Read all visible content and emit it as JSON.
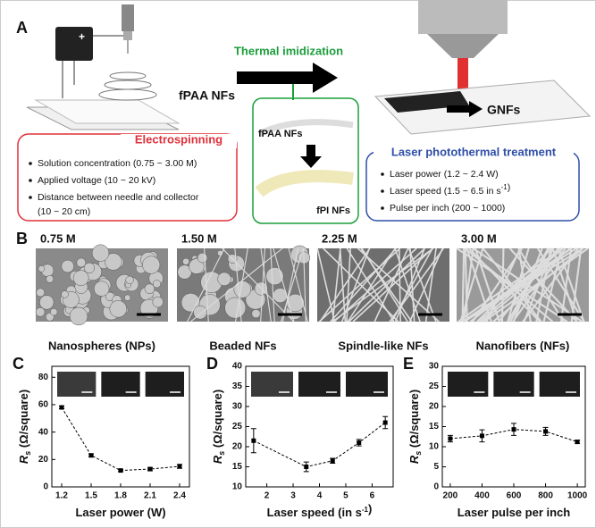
{
  "panel_a": {
    "letter": "A",
    "arrow_label": "Thermal imidization",
    "left_material": "fPAA NFs",
    "right_material": "GNFs",
    "electrospinning": {
      "title": "Electrospinning",
      "items": [
        [
          "Solution concentration (0.75 ~ 3.00 M)"
        ],
        [
          "Applied voltage (10 ~ 20 kV)"
        ],
        [
          "Distance between needle and collector",
          "(10 ~ 20 cm)"
        ]
      ]
    },
    "imidization_box": {
      "top": "fPAA NFs",
      "bottom": "fPI NFs"
    },
    "laser": {
      "title": "Laser photothermal treatment",
      "items": [
        [
          "Laser power (1.2 ~ 2.4 W)"
        ],
        [
          "Laser speed (1.5 ~ 6.5 in s",
          {
            "sup": "-1"
          },
          ")"
        ],
        [
          "Pulse per inch (200 ~ 1000)"
        ]
      ]
    }
  },
  "panel_b": {
    "letter": "B",
    "images": [
      {
        "concentration": "0.75 M",
        "caption": "Nanospheres (NPs)"
      },
      {
        "concentration": "1.50 M",
        "caption": "Beaded NFs"
      },
      {
        "concentration": "2.25 M",
        "caption": "Spindle-like NFs"
      },
      {
        "concentration": "3.00 M",
        "caption": "Nanofibers (NFs)"
      }
    ]
  },
  "chart_data": [
    {
      "type": "line",
      "panel": "C",
      "x_label": [
        "Laser power (W)"
      ],
      "y_label": {
        "symbol": "R",
        "subscript": "s",
        "unit": " (Ω/square)"
      },
      "x": [
        1.2,
        1.5,
        1.8,
        2.1,
        2.4
      ],
      "values": [
        58,
        23,
        12,
        13,
        15
      ],
      "errors": [
        1,
        1,
        0.8,
        1.2,
        1.5
      ],
      "xlim": [
        1.1,
        2.5
      ],
      "ylim": [
        0,
        88
      ],
      "xticks": [
        1.2,
        1.5,
        1.8,
        2.1,
        2.4
      ],
      "yticks": [
        0,
        20,
        40,
        60,
        80
      ],
      "color": "#000000"
    },
    {
      "type": "line",
      "panel": "D",
      "x_label": [
        "Laser speed (in s",
        {
          "sup": "-1"
        },
        ")"
      ],
      "y_label": {
        "symbol": "R",
        "subscript": "s",
        "unit": " (Ω/square)"
      },
      "x": [
        1.5,
        3.5,
        4.5,
        5.5,
        6.5
      ],
      "values": [
        21.5,
        15,
        16.5,
        21,
        26
      ],
      "errors": [
        3,
        1.2,
        0.6,
        0.8,
        1.5
      ],
      "xlim": [
        1.2,
        6.8
      ],
      "ylim": [
        10,
        40
      ],
      "xticks": [
        2,
        3,
        4,
        5,
        6
      ],
      "yticks": [
        10,
        15,
        20,
        25,
        30,
        35,
        40
      ],
      "color": "#000000"
    },
    {
      "type": "line",
      "panel": "E",
      "x_label": [
        "Laser pulse per inch"
      ],
      "y_label": {
        "symbol": "R",
        "subscript": "s",
        "unit": " (Ω/square)"
      },
      "x": [
        200,
        400,
        600,
        800,
        1000
      ],
      "values": [
        12,
        12.7,
        14.3,
        13.8,
        11.2
      ],
      "errors": [
        0.8,
        1.5,
        1.5,
        1,
        0.4
      ],
      "xlim": [
        150,
        1050
      ],
      "ylim": [
        0,
        30
      ],
      "xticks": [
        200,
        400,
        600,
        800,
        1000
      ],
      "yticks": [
        0,
        5,
        10,
        15,
        20,
        25,
        30
      ],
      "color": "#000000"
    }
  ]
}
